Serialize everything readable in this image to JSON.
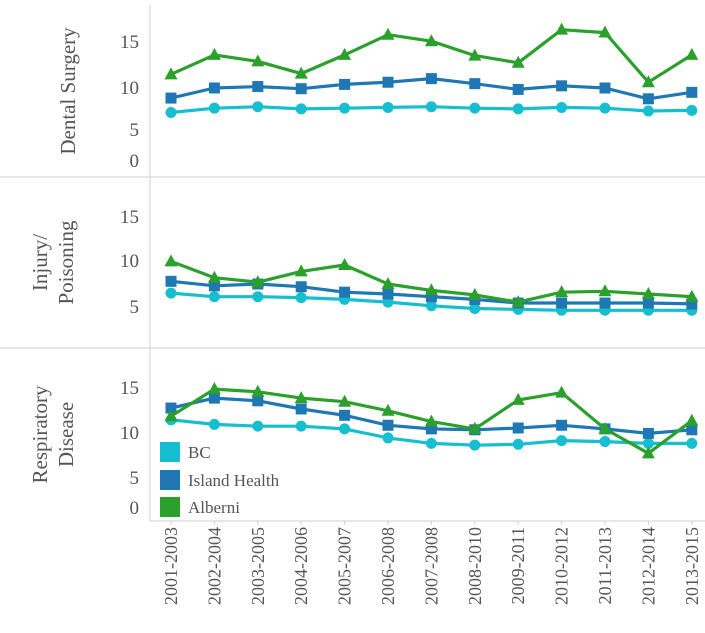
{
  "chart_data": {
    "type": "line",
    "categories": [
      "2001-2003",
      "2002-2004",
      "2003-2005",
      "2004-2006",
      "2005-2007",
      "2006-2008",
      "2007-2008",
      "2008-2010",
      "2009-2011",
      "2010-2012",
      "2011-2013",
      "2012-2014",
      "2013-2015"
    ],
    "colors": {
      "BC": "#17becf",
      "Island Health": "#1f77b4",
      "Alberni": "#2ca02c"
    },
    "markers": {
      "BC": "circle",
      "Island Health": "square",
      "Alberni": "triangle"
    },
    "legend": {
      "placement": "bottom-left of last panel",
      "entries": [
        "BC",
        "Island Health",
        "Alberni"
      ]
    },
    "panels": [
      {
        "title_lines": [
          "Dental Surgery"
        ],
        "yticks": [
          "15",
          "10",
          "5",
          "0"
        ],
        "series": [
          {
            "name": "BC",
            "values": [
              6.6,
              7.2,
              7.4,
              7.1,
              7.2,
              7.3,
              7.4,
              7.2,
              7.1,
              7.3,
              7.2,
              6.8,
              6.9
            ]
          },
          {
            "name": "Island Health",
            "values": [
              8.6,
              10.0,
              10.2,
              9.9,
              10.5,
              10.8,
              11.3,
              10.6,
              9.8,
              10.3,
              10.0,
              8.5,
              9.4
            ]
          },
          {
            "name": "Alberni",
            "values": [
              11.9,
              14.6,
              13.7,
              12.0,
              14.6,
              17.4,
              16.5,
              14.5,
              13.5,
              18.1,
              17.7,
              10.8,
              14.6
            ]
          }
        ]
      },
      {
        "title_lines": [
          "Injury/",
          "Poisoning"
        ],
        "yticks": [
          "15",
          "10",
          "5"
        ],
        "series": [
          {
            "name": "BC",
            "values": [
              6.4,
              6.0,
              6.0,
              5.9,
              5.7,
              5.4,
              5.0,
              4.7,
              4.6,
              4.5,
              4.5,
              4.5,
              4.5
            ]
          },
          {
            "name": "Island Health",
            "values": [
              7.7,
              7.2,
              7.4,
              7.1,
              6.5,
              6.3,
              6.0,
              5.7,
              5.3,
              5.3,
              5.3,
              5.3,
              5.2
            ]
          },
          {
            "name": "Alberni",
            "values": [
              9.9,
              8.1,
              7.6,
              8.8,
              9.5,
              7.4,
              6.7,
              6.2,
              5.4,
              6.5,
              6.6,
              6.3,
              6.0
            ]
          }
        ]
      },
      {
        "title_lines": [
          "Respiratory",
          "Disease"
        ],
        "yticks": [
          "15",
          "10",
          "5",
          "0"
        ],
        "series": [
          {
            "name": "BC",
            "values": [
              11.4,
              10.9,
              10.7,
              10.7,
              10.4,
              9.4,
              8.8,
              8.6,
              8.7,
              9.1,
              9.0,
              8.8,
              8.8
            ]
          },
          {
            "name": "Island Health",
            "values": [
              12.7,
              13.8,
              13.5,
              12.6,
              11.9,
              10.8,
              10.4,
              10.3,
              10.5,
              10.8,
              10.4,
              9.9,
              10.3
            ]
          },
          {
            "name": "Alberni",
            "values": [
              11.8,
              14.8,
              14.5,
              13.8,
              13.4,
              12.4,
              11.2,
              10.4,
              13.6,
              14.4,
              10.4,
              7.7,
              11.3
            ]
          }
        ]
      }
    ]
  }
}
